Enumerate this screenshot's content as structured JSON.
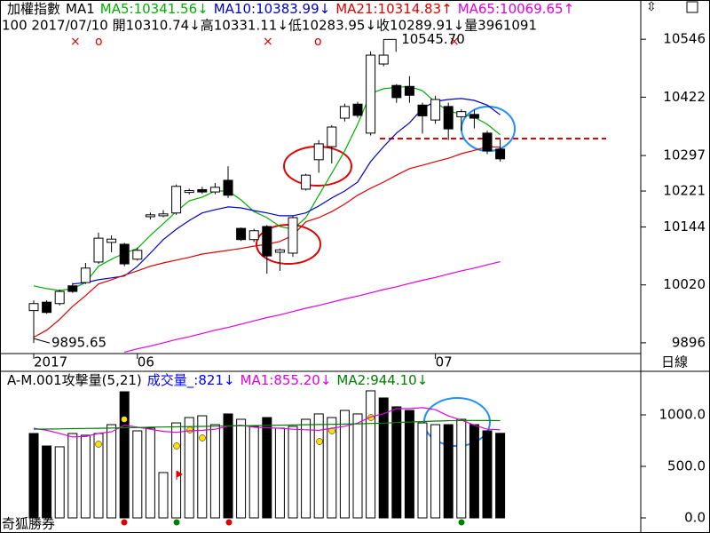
{
  "chart_data": [
    {
      "type": "candlestick",
      "title": "加權指數",
      "subtitle": "MA1",
      "info": "100 2017/07/10 開10310.74↓高10331.11↓低10283.95↓收10289.91↓量3961091",
      "categories": [
        "2017",
        null,
        null,
        null,
        null,
        null,
        null,
        null,
        "06",
        null,
        null,
        null,
        null,
        null,
        null,
        null,
        null,
        null,
        null,
        null,
        null,
        null,
        null,
        null,
        null,
        null,
        null,
        null,
        null,
        null,
        null,
        "07",
        null,
        null,
        null,
        null,
        null
      ],
      "open": [
        9965,
        9983,
        9980,
        10018,
        10025,
        10069,
        10111,
        10107,
        10075,
        10166,
        10168,
        10174,
        10218,
        10224,
        10219,
        10244,
        10141,
        10117,
        10145,
        10090,
        10088,
        10225,
        10288,
        10316,
        10377,
        10407,
        10345,
        10493,
        10447,
        10445,
        10405,
        10373,
        10402,
        10380,
        10385,
        10345,
        10310.74
      ],
      "high": [
        9987,
        9987,
        10010,
        10024,
        10067,
        10132,
        10126,
        10110,
        10100,
        10175,
        10180,
        10235,
        10226,
        10230,
        10238,
        10274,
        10143,
        10140,
        10148,
        10098,
        10168,
        10258,
        10330,
        10362,
        10408,
        10412,
        10520,
        10545.7,
        10450,
        10467,
        10410,
        10425,
        10410,
        10396,
        10395,
        10350,
        10331.11
      ],
      "low": [
        9895.65,
        9958,
        9976,
        10003,
        10022,
        10065,
        10090,
        10060,
        10072,
        10160,
        10165,
        10170,
        10214,
        10215,
        10214,
        10206,
        10114,
        10112,
        10044,
        10050,
        10080,
        10222,
        10260,
        10280,
        10370,
        10378,
        10340,
        10488,
        10410,
        10410,
        10344,
        10365,
        10330,
        10350,
        10355,
        10300,
        10283.95
      ],
      "close": [
        9980,
        9961,
        10006,
        10006,
        10056,
        10120,
        10118,
        10065,
        10094,
        10170,
        10172,
        10231,
        10222,
        10219,
        10229,
        10212,
        10117,
        10136,
        10082,
        10095,
        10164,
        10255,
        10322,
        10358,
        10402,
        10383,
        10512,
        10512,
        10421,
        10426,
        10382,
        10417,
        10354,
        10391,
        10377,
        10307,
        10289.91
      ],
      "up_color": "#ffffff",
      "down_color": "#000000",
      "series": [
        {
          "name": "MA5:10341.56↓",
          "color": "#00b000",
          "values": [
            10018,
            10012,
            10008,
            10012,
            10025,
            10060,
            10075,
            10088,
            10098,
            10126,
            10151,
            10177,
            10200,
            10208,
            10221,
            10221,
            10202,
            10177,
            10164,
            10145,
            10139,
            10164,
            10212,
            10259,
            10307,
            10364,
            10430,
            10440,
            10443,
            10445,
            10436,
            10411,
            10392,
            10386,
            10379,
            10364,
            10341.56
          ]
        },
        {
          "name": "MA10:10383.99↓",
          "color": "#0000c8",
          "values": [
            null,
            null,
            null,
            10022,
            10025,
            10031,
            10035,
            10039,
            10060,
            10088,
            10117,
            10139,
            10158,
            10174,
            10181,
            10187,
            10185,
            10179,
            10174,
            10168,
            10168,
            10174,
            10189,
            10206,
            10221,
            10240,
            10284,
            10316,
            10345,
            10367,
            10398,
            10413,
            10417,
            10419,
            10415,
            10405,
            10383.99
          ]
        },
        {
          "name": "MA21:10314.83↑",
          "color": "#e00000",
          "values": [
            9908,
            9923,
            9946,
            9974,
            9997,
            10022,
            10031,
            10041,
            10050,
            10060,
            10067,
            10073,
            10079,
            10086,
            10090,
            10094,
            10098,
            10103,
            10107,
            10113,
            10126,
            10155,
            10164,
            10177,
            10193,
            10212,
            10227,
            10240,
            10255,
            10269,
            10276,
            10284,
            10291,
            10301,
            10308,
            10316,
            10314.83
          ]
        },
        {
          "name": "MA65:10069.65↑",
          "color": "#e000e0",
          "values": [
            null,
            null,
            null,
            null,
            null,
            null,
            null,
            9876,
            9883,
            9889,
            9896,
            9903,
            9909,
            9916,
            9923,
            9929,
            9936,
            9943,
            9950,
            9956,
            9963,
            9970,
            9976,
            9983,
            9990,
            9996,
            10003,
            10010,
            10016,
            10023,
            10030,
            10036,
            10043,
            10050,
            10056,
            10063,
            10069.65
          ]
        }
      ],
      "ylim": [
        9873,
        10630
      ],
      "yticks": [
        10546,
        10422,
        10297,
        10221,
        10144,
        10020,
        9896
      ],
      "high_label": "10545.70",
      "low_label": "9895.65",
      "period": "日線"
    },
    {
      "type": "bar",
      "title": "A-M.001攻擊量(5,21)",
      "footer": "奇狐勝券",
      "series": [
        {
          "name": "成交量_:821↓",
          "color": "#0000ff",
          "type": "bar",
          "values": [
            819,
            698,
            690,
            819,
            802,
            819,
            905,
            1224,
            845,
            871,
            440,
            922,
            974,
            991,
            905,
            1009,
            957,
            888,
            974,
            871,
            888,
            957,
            1009,
            974,
            1043,
            1009,
            1233,
            1164,
            1078,
            1043,
            922,
            905,
            905,
            957,
            905,
            845,
            821
          ],
          "colors": [
            "#000000",
            "#000000",
            "#ffffff",
            "#ffffff",
            "#ffffff",
            "#ffffff",
            "#ffffff",
            "#000000",
            "#ffffff",
            "#ffffff",
            "#ffffff",
            "#ffffff",
            "#ffffff",
            "#ffffff",
            "#ffffff",
            "#000000",
            "#ffffff",
            "#ffffff",
            "#000000",
            "#ffffff",
            "#ffffff",
            "#ffffff",
            "#ffffff",
            "#ffffff",
            "#ffffff",
            "#ffffff",
            "#ffffff",
            "#000000",
            "#000000",
            "#000000",
            "#ffffff",
            "#ffffff",
            "#000000",
            "#ffffff",
            "#000000",
            "#000000",
            "#000000"
          ]
        },
        {
          "name": "MA1:855.20↓",
          "color": "#e000e0",
          "type": "line",
          "values": [
            870,
            850,
            820,
            785,
            790,
            820,
            835,
            900,
            880,
            860,
            840,
            830,
            845,
            850,
            860,
            890,
            900,
            880,
            875,
            870,
            860,
            855,
            850,
            870,
            890,
            920,
            980,
            1010,
            1060,
            1060,
            1070,
            1050,
            990,
            950,
            900,
            860,
            855.2
          ]
        },
        {
          "name": "MA2:944.10↓",
          "color": "#008000",
          "type": "line",
          "values": [
            860,
            862,
            864,
            866,
            868,
            870,
            872,
            875,
            877,
            880,
            882,
            884,
            886,
            888,
            890,
            892,
            894,
            896,
            898,
            900,
            902,
            904,
            906,
            908,
            910,
            913,
            916,
            920,
            925,
            930,
            935,
            940,
            943,
            945,
            946,
            945,
            944.1
          ]
        }
      ],
      "ylim": [
        0,
        1319
      ],
      "yticks": [
        {
          "value": 1000,
          "label": "1000.0"
        },
        {
          "value": 500,
          "label": "500.0"
        },
        {
          "value": 0,
          "label": "0.0"
        }
      ]
    }
  ]
}
